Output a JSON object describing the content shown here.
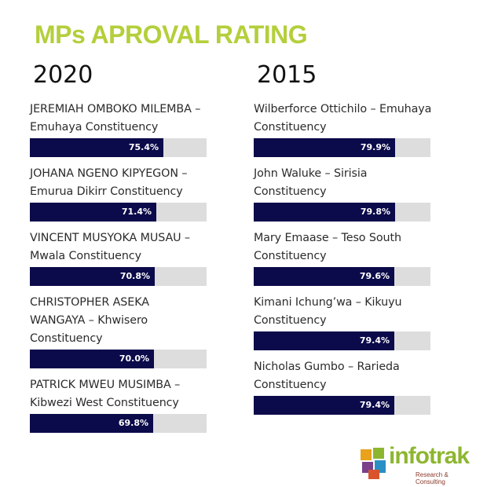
{
  "title": "MPs APROVAL RATING",
  "logo": {
    "name": "infotrak",
    "tagline": "Research & Consulting"
  },
  "colors": {
    "title": "#b3cf3b",
    "bar": "#0b0a4a",
    "track": "#dddddd"
  },
  "chart_data": [
    {
      "type": "bar",
      "title": "2020",
      "categories": [
        "JEREMIAH OMBOKO MILEMBA – Emuhaya Constituency",
        "JOHANA NGENO KIPYEGON – Emurua Dikirr Constituency",
        "VINCENT MUSYOKA MUSAU – Mwala Constituency",
        "CHRISTOPHER ASEKA WANGAYA – Khwisero Constituency",
        "PATRICK MWEU MUSIMBA – Kibwezi West Constituency"
      ],
      "values": [
        75.4,
        71.4,
        70.8,
        70.0,
        69.8
      ],
      "value_labels": [
        "75.4%",
        "71.4%",
        "70.8%",
        "70.0%",
        "69.8%"
      ],
      "xlim": [
        0,
        100
      ]
    },
    {
      "type": "bar",
      "title": "2015",
      "categories": [
        "Wilberforce Ottichilo – Emuhaya Constituency",
        "John Waluke – Sirisia Constituency",
        "Mary Emaase – Teso South Constituency",
        "Kimani Ichung’wa – Kikuyu Constituency",
        "Nicholas Gumbo – Rarieda Constituency"
      ],
      "values": [
        79.9,
        79.8,
        79.6,
        79.4,
        79.4
      ],
      "value_labels": [
        "79.9%",
        "79.8%",
        "79.6%",
        "79.4%",
        "79.4%"
      ],
      "xlim": [
        0,
        100
      ]
    }
  ]
}
